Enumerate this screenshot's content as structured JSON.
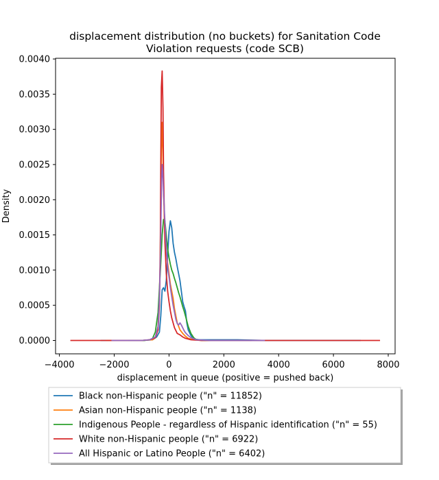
{
  "chart_data": {
    "type": "line",
    "title_lines": [
      "displacement distribution (no buckets)  for Sanitation Code",
      "Violation requests (code SCB)"
    ],
    "xlabel": "displacement in queue (positive = pushed back)",
    "ylabel": "Density",
    "xlim": [
      -4140,
      8250
    ],
    "ylim": [
      -0.00019,
      0.00401
    ],
    "xticks": [
      -4000,
      -2000,
      0,
      2000,
      4000,
      6000,
      8000
    ],
    "xtick_labels": [
      "−4000",
      "−2000",
      "0",
      "2000",
      "4000",
      "6000",
      "8000"
    ],
    "yticks": [
      0.0,
      0.0005,
      0.001,
      0.0015,
      0.002,
      0.0025,
      0.003,
      0.0035,
      0.004
    ],
    "ytick_labels": [
      "0.0000",
      "0.0005",
      "0.0010",
      "0.0015",
      "0.0020",
      "0.0025",
      "0.0030",
      "0.0035",
      "0.0040"
    ],
    "grid": false,
    "legend_position": "below the plot",
    "series": [
      {
        "name": "Black non-Hispanic people (\"n\" = 11852)",
        "color": "#1f77b4",
        "x": [
          -2500,
          -1000,
          -600,
          -450,
          -350,
          -300,
          -250,
          -200,
          -150,
          -100,
          -50,
          0,
          50,
          100,
          150,
          200,
          250,
          300,
          350,
          400,
          450,
          500,
          550,
          600,
          650,
          700,
          800,
          900,
          1100,
          1500,
          2500,
          3500,
          5000,
          7000
        ],
        "y": [
          0,
          0.0,
          1e-05,
          5e-05,
          0.00012,
          0.00035,
          0.00072,
          0.00075,
          0.0007,
          0.00085,
          0.0012,
          0.00155,
          0.0017,
          0.0016,
          0.00138,
          0.00125,
          0.00116,
          0.00105,
          0.00095,
          0.00085,
          0.0007,
          0.00055,
          0.00048,
          0.00042,
          0.00025,
          0.00015,
          7e-05,
          2e-05,
          1e-05,
          1e-05,
          1e-05,
          0.0,
          0.0,
          0.0
        ]
      },
      {
        "name": "Asian non-Hispanic people (\"n\" = 1138)",
        "color": "#ff7f0e",
        "x": [
          -2300,
          -1000,
          -600,
          -500,
          -400,
          -350,
          -300,
          -280,
          -250,
          -220,
          -200,
          -150,
          -100,
          -50,
          0,
          50,
          100,
          150,
          200,
          300,
          400,
          500,
          600,
          700,
          900,
          1200,
          2000,
          3000
        ],
        "y": [
          0,
          0.0,
          1e-05,
          4e-05,
          0.0002,
          0.0006,
          0.0018,
          0.0027,
          0.0031,
          0.0026,
          0.0021,
          0.0015,
          0.00125,
          0.0011,
          0.00095,
          0.0008,
          0.0007,
          0.0006,
          0.00045,
          0.00025,
          0.00015,
          0.0001,
          6e-05,
          3e-05,
          1e-05,
          0.0,
          0.0,
          0.0
        ]
      },
      {
        "name": "Indigenous People - regardless of Hispanic identification (\"n\" = 55)",
        "color": "#2ca02c",
        "x": [
          -1500,
          -900,
          -700,
          -600,
          -500,
          -400,
          -300,
          -250,
          -200,
          -150,
          -100,
          -50,
          0,
          50,
          100,
          150,
          200,
          250,
          300,
          350,
          400,
          450,
          500,
          550,
          600,
          700,
          800,
          900,
          1000,
          1200,
          1500
        ],
        "y": [
          0,
          0.0,
          1e-05,
          3e-05,
          0.00012,
          0.0004,
          0.0011,
          0.0015,
          0.00172,
          0.0017,
          0.0015,
          0.0013,
          0.00118,
          0.00108,
          0.001,
          0.00095,
          0.00088,
          0.00082,
          0.00075,
          0.00068,
          0.00062,
          0.00055,
          0.00048,
          0.00042,
          0.00035,
          0.0002,
          0.0001,
          4e-05,
          1e-05,
          0.0,
          0.0
        ]
      },
      {
        "name": "White non-Hispanic people (\"n\" = 6922)",
        "color": "#d62728",
        "x": [
          -3600,
          -2000,
          -1000,
          -700,
          -500,
          -400,
          -350,
          -320,
          -300,
          -280,
          -250,
          -220,
          -200,
          -150,
          -100,
          -50,
          0,
          50,
          100,
          150,
          200,
          300,
          400,
          500,
          600,
          800,
          1200,
          2000,
          4000,
          6000,
          7700
        ],
        "y": [
          0,
          0.0,
          0.0,
          1e-05,
          4e-05,
          0.00015,
          0.0005,
          0.0012,
          0.0025,
          0.0036,
          0.00383,
          0.0033,
          0.0024,
          0.0014,
          0.00095,
          0.0007,
          0.00055,
          0.00042,
          0.00032,
          0.00025,
          0.00018,
          0.0001,
          8e-05,
          5e-05,
          3e-05,
          1e-05,
          0.0,
          0.0,
          0.0,
          0.0,
          0.0
        ]
      },
      {
        "name": "All Hispanic or Latino People (\"n\" = 6402)",
        "color": "#9467bd",
        "x": [
          -2100,
          -1000,
          -700,
          -500,
          -400,
          -350,
          -300,
          -270,
          -250,
          -230,
          -200,
          -150,
          -100,
          -50,
          0,
          50,
          100,
          150,
          200,
          250,
          300,
          350,
          400,
          450,
          500,
          550,
          600,
          700,
          800,
          1000,
          1500,
          3500
        ],
        "y": [
          0,
          0.0,
          1e-05,
          5e-05,
          0.0002,
          0.0006,
          0.0015,
          0.0023,
          0.0025,
          0.0024,
          0.0021,
          0.0017,
          0.0013,
          0.00105,
          0.0009,
          0.00075,
          0.00062,
          0.0005,
          0.0004,
          0.0003,
          0.00024,
          0.00022,
          0.00025,
          0.00022,
          0.00018,
          0.00014,
          0.00011,
          7e-05,
          4e-05,
          1e-05,
          0.0,
          0.0
        ]
      }
    ]
  }
}
